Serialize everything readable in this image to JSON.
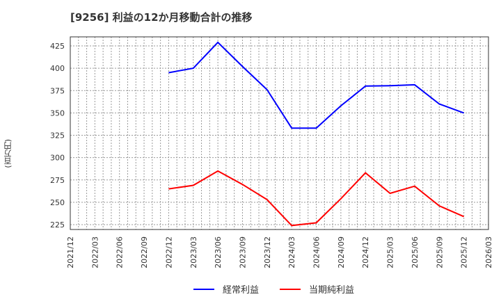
{
  "title": "[9256]  利益の12か月移動合計の推移",
  "y_axis_label": "(百万円)",
  "legend": [
    {
      "label": "経常利益",
      "color": "#0000ff"
    },
    {
      "label": "当期純利益",
      "color": "#ff0000"
    }
  ],
  "chart_data": {
    "type": "line",
    "title": "[9256]  利益の12か月移動合計の推移",
    "xlabel": "",
    "ylabel": "(百万円)",
    "ylim": [
      218,
      435
    ],
    "yticks": [
      225,
      250,
      275,
      300,
      325,
      350,
      375,
      400,
      425
    ],
    "grid": true,
    "legend_position": "bottom",
    "x_ticks": [
      "2021/12",
      "2022/03",
      "2022/06",
      "2022/09",
      "2022/12",
      "2023/03",
      "2023/06",
      "2023/09",
      "2023/12",
      "2024/03",
      "2024/06",
      "2024/09",
      "2024/12",
      "2025/03",
      "2025/06",
      "2025/09",
      "2025/12",
      "2026/03"
    ],
    "x": [
      "2022/12",
      "2023/03",
      "2023/06",
      "2023/09",
      "2023/12",
      "2024/03",
      "2024/06",
      "2024/09",
      "2024/12",
      "2025/03",
      "2025/06",
      "2025/09",
      "2025/12"
    ],
    "series": [
      {
        "name": "経常利益",
        "color": "#0000ff",
        "values": [
          395,
          400,
          429,
          402,
          376,
          333,
          333,
          358,
          380,
          380.5,
          381.5,
          360,
          350
        ]
      },
      {
        "name": "当期純利益",
        "color": "#ff0000",
        "values": [
          265,
          269,
          285,
          270,
          253,
          224,
          227,
          254,
          283,
          260,
          268,
          246,
          234
        ]
      }
    ]
  }
}
